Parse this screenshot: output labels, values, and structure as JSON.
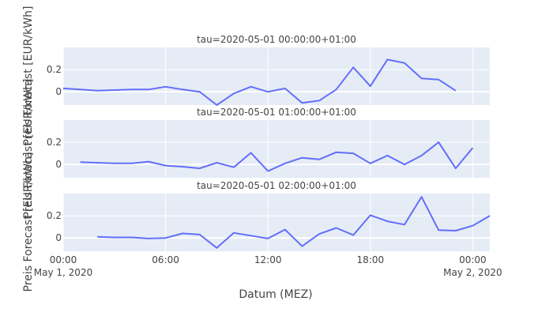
{
  "chart_data": {
    "type": "line",
    "xlabel": "Datum (MEZ)",
    "ylabel": "Preis Forecast [EUR/kWh]",
    "x_ticks": [
      "00:00",
      "06:00",
      "12:00",
      "18:00",
      "00:00"
    ],
    "x_tick_dates": [
      "May 1, 2020",
      "May 2, 2020"
    ],
    "xlim": [
      "2020-05-01 00:00",
      "2020-05-02 01:00"
    ],
    "ylim": [
      -0.12,
      0.4
    ],
    "y_ticks": [
      "0",
      "0.2"
    ],
    "grid": true,
    "legend": false,
    "line_color": "#636efa",
    "panels": [
      {
        "title": "tau=2020-05-01 00:00:00+01:00",
        "x": [
          "2020-05-01 00:00",
          "2020-05-01 01:00",
          "2020-05-01 02:00",
          "2020-05-01 03:00",
          "2020-05-01 04:00",
          "2020-05-01 05:00",
          "2020-05-01 06:00",
          "2020-05-01 07:00",
          "2020-05-01 08:00",
          "2020-05-01 09:00",
          "2020-05-01 10:00",
          "2020-05-01 11:00",
          "2020-05-01 12:00",
          "2020-05-01 13:00",
          "2020-05-01 14:00",
          "2020-05-01 15:00",
          "2020-05-01 16:00",
          "2020-05-01 17:00",
          "2020-05-01 18:00",
          "2020-05-01 19:00",
          "2020-05-01 20:00",
          "2020-05-01 21:00",
          "2020-05-01 22:00",
          "2020-05-01 23:00"
        ],
        "values": [
          0.03,
          0.02,
          0.01,
          0.015,
          0.02,
          0.02,
          0.045,
          0.02,
          0.0,
          -0.12,
          -0.015,
          0.045,
          0.0,
          0.03,
          -0.1,
          -0.08,
          0.02,
          0.22,
          0.05,
          0.29,
          0.26,
          0.12,
          0.11,
          0.01
        ]
      },
      {
        "title": "tau=2020-05-01 01:00:00+01:00",
        "x": [
          "2020-05-01 01:00",
          "2020-05-01 02:00",
          "2020-05-01 03:00",
          "2020-05-01 04:00",
          "2020-05-01 05:00",
          "2020-05-01 06:00",
          "2020-05-01 07:00",
          "2020-05-01 08:00",
          "2020-05-01 09:00",
          "2020-05-01 10:00",
          "2020-05-01 11:00",
          "2020-05-01 12:00",
          "2020-05-01 13:00",
          "2020-05-01 14:00",
          "2020-05-01 15:00",
          "2020-05-01 16:00",
          "2020-05-01 17:00",
          "2020-05-01 18:00",
          "2020-05-01 19:00",
          "2020-05-01 20:00",
          "2020-05-01 21:00",
          "2020-05-01 22:00",
          "2020-05-01 23:00",
          "2020-05-02 00:00"
        ],
        "values": [
          0.02,
          0.015,
          0.01,
          0.01,
          0.025,
          -0.01,
          -0.02,
          -0.035,
          0.015,
          -0.025,
          0.105,
          -0.06,
          0.01,
          0.06,
          0.045,
          0.11,
          0.1,
          0.01,
          0.08,
          0.0,
          0.08,
          0.2,
          -0.035,
          0.15
        ]
      },
      {
        "title": "tau=2020-05-01 02:00:00+01:00",
        "x": [
          "2020-05-01 02:00",
          "2020-05-01 03:00",
          "2020-05-01 04:00",
          "2020-05-01 05:00",
          "2020-05-01 06:00",
          "2020-05-01 07:00",
          "2020-05-01 08:00",
          "2020-05-01 09:00",
          "2020-05-01 10:00",
          "2020-05-01 11:00",
          "2020-05-01 12:00",
          "2020-05-01 13:00",
          "2020-05-01 14:00",
          "2020-05-01 15:00",
          "2020-05-01 16:00",
          "2020-05-01 17:00",
          "2020-05-01 18:00",
          "2020-05-01 19:00",
          "2020-05-01 20:00",
          "2020-05-01 21:00",
          "2020-05-01 22:00",
          "2020-05-01 23:00",
          "2020-05-02 00:00",
          "2020-05-02 01:00"
        ],
        "values": [
          0.01,
          0.005,
          0.005,
          -0.005,
          0.0,
          0.04,
          0.03,
          -0.09,
          0.045,
          0.02,
          -0.005,
          0.075,
          -0.075,
          0.035,
          0.09,
          0.025,
          0.205,
          0.15,
          0.12,
          0.37,
          0.07,
          0.065,
          0.11,
          0.2
        ]
      }
    ]
  }
}
